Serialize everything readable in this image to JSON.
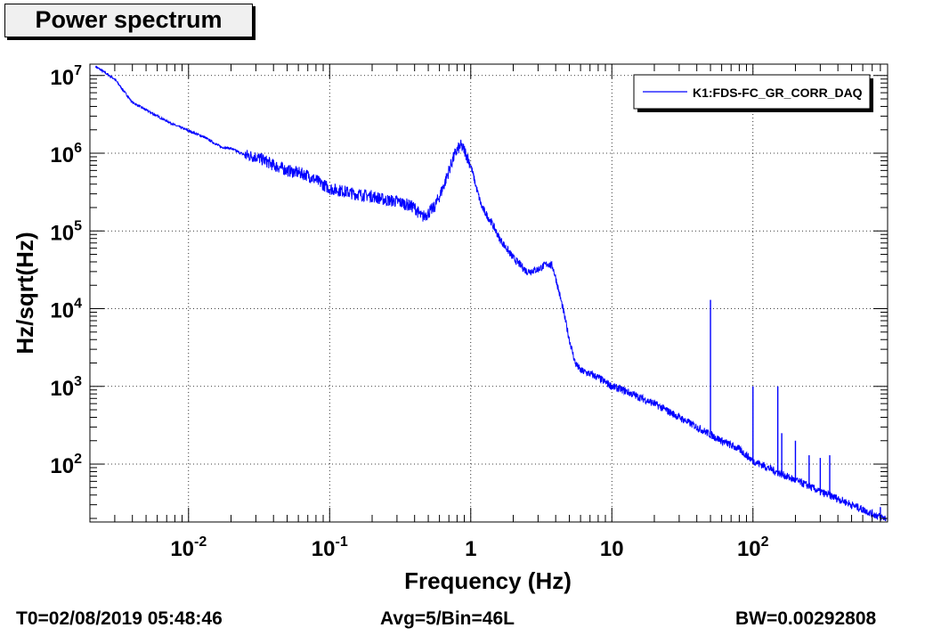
{
  "title": "Power spectrum",
  "chart_data": {
    "type": "line",
    "title": "Power spectrum",
    "xlabel": "Frequency (Hz)",
    "ylabel": "Hz/sqrt(Hz)",
    "x_scale": "log",
    "y_scale": "log",
    "xlim": [
      0.002,
      900
    ],
    "ylim": [
      18,
      14000000
    ],
    "grid": true,
    "legend_position": "top-right",
    "series_color": "#0000ff",
    "x_ticks": [
      {
        "value": 0.01,
        "base": "10",
        "exp": "-2"
      },
      {
        "value": 0.1,
        "base": "10",
        "exp": "-1"
      },
      {
        "value": 1,
        "base": "1",
        "exp": ""
      },
      {
        "value": 10,
        "base": "10",
        "exp": ""
      },
      {
        "value": 100,
        "base": "10",
        "exp": "2"
      }
    ],
    "y_ticks": [
      {
        "value": 100,
        "base": "10",
        "exp": "2"
      },
      {
        "value": 1000,
        "base": "10",
        "exp": "3"
      },
      {
        "value": 10000,
        "base": "10",
        "exp": "4"
      },
      {
        "value": 100000,
        "base": "10",
        "exp": "5"
      },
      {
        "value": 1000000,
        "base": "10",
        "exp": "6"
      },
      {
        "value": 10000000,
        "base": "10",
        "exp": "7"
      }
    ],
    "series": [
      {
        "name": "K1:FDS-FC_GR_CORR_DAQ",
        "x": [
          0.0022,
          0.003,
          0.004,
          0.006,
          0.008,
          0.01,
          0.013,
          0.017,
          0.02,
          0.025,
          0.03,
          0.035,
          0.04,
          0.045,
          0.05,
          0.06,
          0.07,
          0.08,
          0.1,
          0.12,
          0.15,
          0.2,
          0.25,
          0.3,
          0.35,
          0.4,
          0.45,
          0.5,
          0.55,
          0.6,
          0.65,
          0.7,
          0.75,
          0.8,
          0.85,
          0.9,
          1.0,
          1.1,
          1.2,
          1.4,
          1.6,
          2.0,
          2.5,
          3.0,
          3.5,
          3.8,
          4.0,
          4.5,
          5.0,
          5.5,
          6.0,
          7.0,
          8.0,
          10,
          12,
          15,
          20,
          25,
          30,
          40,
          50,
          60,
          80,
          100,
          120,
          150,
          200,
          250,
          300,
          400,
          500,
          600,
          700,
          800,
          880
        ],
        "values": [
          13000000,
          9000000,
          4500000,
          3000000,
          2300000,
          1950000,
          1600000,
          1200000,
          1150000,
          950000,
          900000,
          800000,
          700000,
          650000,
          600000,
          560000,
          520000,
          450000,
          350000,
          330000,
          300000,
          280000,
          250000,
          240000,
          220000,
          200000,
          150000,
          170000,
          200000,
          280000,
          400000,
          600000,
          850000,
          1100000,
          1250000,
          1100000,
          700000,
          350000,
          200000,
          130000,
          80000,
          45000,
          30000,
          32000,
          38000,
          35000,
          25000,
          10000,
          4000,
          2000,
          1600,
          1450,
          1300,
          1000,
          900,
          750,
          600,
          480,
          400,
          300,
          240,
          200,
          155,
          110,
          95,
          78,
          62,
          52,
          44,
          36,
          30,
          26,
          23,
          21,
          20
        ],
        "spikes": [
          {
            "x": 50,
            "y": 13000
          },
          {
            "x": 100,
            "y": 1000
          },
          {
            "x": 150,
            "y": 1000
          },
          {
            "x": 160,
            "y": 250
          },
          {
            "x": 200,
            "y": 200
          },
          {
            "x": 250,
            "y": 130
          },
          {
            "x": 300,
            "y": 120
          },
          {
            "x": 350,
            "y": 130
          },
          {
            "x": 400,
            "y": 35
          },
          {
            "x": 600,
            "y": 28
          },
          {
            "x": 800,
            "y": 28
          }
        ]
      }
    ]
  },
  "footer": {
    "t0": "T0=02/08/2019 05:48:46",
    "avg": "Avg=5/Bin=46L",
    "bw": "BW=0.00292808"
  }
}
